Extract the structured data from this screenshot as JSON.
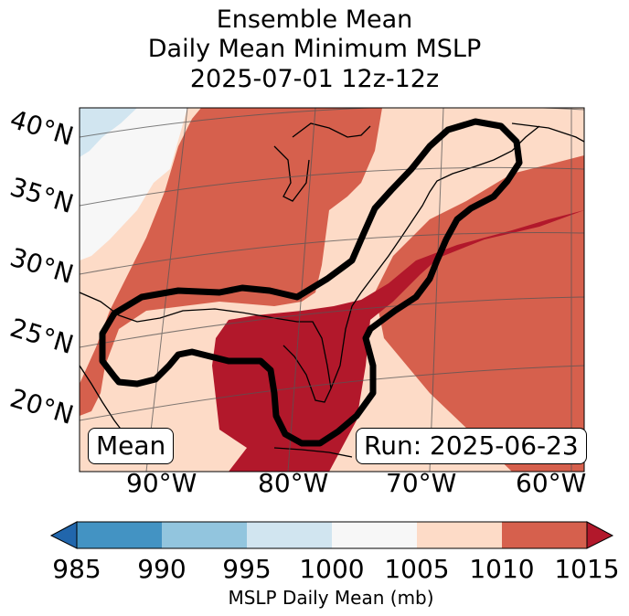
{
  "title": {
    "line1": "Ensemble Mean",
    "line2": "Daily Mean Minimum MSLP",
    "line3": "2025-07-01 12z-12z"
  },
  "map": {
    "lat_labels": [
      "40°N",
      "35°N",
      "30°N",
      "25°N",
      "20°N"
    ],
    "lon_labels": [
      "90°W",
      "80°W",
      "70°W",
      "60°W"
    ],
    "left_badge": "Mean",
    "right_badge": "Run: 2025-06-23",
    "contour_color": "#000000"
  },
  "colorbar": {
    "ticks": [
      "985",
      "990",
      "995",
      "1000",
      "1005",
      "1010",
      "1015"
    ],
    "label": "MSLP Daily Mean (mb)",
    "colors": [
      "#2166ac",
      "#4393c3",
      "#92c5de",
      "#d1e5f0",
      "#f7f7f7",
      "#fddbc7",
      "#d6604d",
      "#b2182b"
    ]
  }
}
